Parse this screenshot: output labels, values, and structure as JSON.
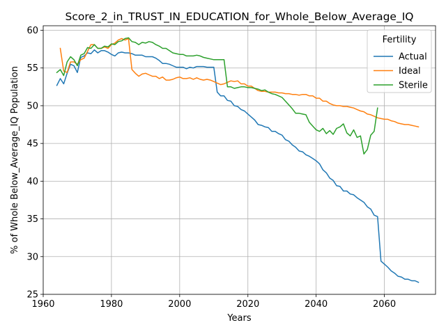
{
  "chart_data": {
    "type": "line",
    "title": "Score_2_in_TRUST_IN_EDUCATION_for_Whole_Below_Average_IQ",
    "xlabel": "Years",
    "ylabel": "% of Whole Below_Average_IQ Population",
    "xlim": [
      1960,
      2075
    ],
    "ylim": [
      25,
      60.6
    ],
    "xticks": [
      1960,
      1980,
      2000,
      2020,
      2040,
      2060
    ],
    "yticks": [
      25,
      30,
      35,
      40,
      45,
      50,
      55,
      60
    ],
    "xtick_labels": [
      "1960",
      "1980",
      "2000",
      "2020",
      "2040",
      "2060"
    ],
    "ytick_labels": [
      "25",
      "30",
      "35",
      "40",
      "45",
      "50",
      "55",
      "60"
    ],
    "grid": true,
    "legend": {
      "title": "Fertility",
      "placement": "top-right"
    },
    "series": [
      {
        "name": "Actual",
        "color": "#1f77b4",
        "x": [
          1964,
          1965,
          1966,
          1967,
          1968,
          1969,
          1970,
          1971,
          1972,
          1973,
          1974,
          1975,
          1976,
          1977,
          1978,
          1979,
          1980,
          1981,
          1982,
          1983,
          1984,
          1985,
          1986,
          1987,
          1988,
          1989,
          1990,
          1991,
          1992,
          1993,
          1994,
          1995,
          1996,
          1997,
          1998,
          1999,
          2000,
          2001,
          2002,
          2003,
          2004,
          2005,
          2006,
          2007,
          2008,
          2009,
          2010,
          2011,
          2012,
          2013,
          2014,
          2015,
          2016,
          2017,
          2018,
          2019,
          2020,
          2021,
          2022,
          2023,
          2024,
          2025,
          2026,
          2027,
          2028,
          2029,
          2030,
          2031,
          2032,
          2033,
          2034,
          2035,
          2036,
          2037,
          2038,
          2039,
          2040,
          2041,
          2042,
          2043,
          2044,
          2045,
          2046,
          2047,
          2048,
          2049,
          2050,
          2051,
          2052,
          2053,
          2054,
          2055,
          2056,
          2057,
          2058,
          2059,
          2060,
          2061,
          2062,
          2063,
          2064,
          2065,
          2066,
          2067,
          2068,
          2069,
          2070
        ],
        "y": [
          52.7,
          53.6,
          52.9,
          54.3,
          55.5,
          55.3,
          54.4,
          56.4,
          56.6,
          57.0,
          56.9,
          57.4,
          57.0,
          57.3,
          57.3,
          57.1,
          56.8,
          56.6,
          57.0,
          57.1,
          57.0,
          57.0,
          56.9,
          56.7,
          56.7,
          56.7,
          56.5,
          56.5,
          56.5,
          56.3,
          56.0,
          55.6,
          55.6,
          55.5,
          55.3,
          55.1,
          55.1,
          55.1,
          54.9,
          55.1,
          55.0,
          55.2,
          55.2,
          55.2,
          55.1,
          55.1,
          55.1,
          51.8,
          51.3,
          51.3,
          50.7,
          50.6,
          50.0,
          49.9,
          49.5,
          49.3,
          48.9,
          48.5,
          48.1,
          47.5,
          47.4,
          47.2,
          47.1,
          46.6,
          46.6,
          46.3,
          46.1,
          45.5,
          45.3,
          44.8,
          44.5,
          44.0,
          43.9,
          43.5,
          43.3,
          43.0,
          42.7,
          42.3,
          41.5,
          41.1,
          40.4,
          40.1,
          39.4,
          39.3,
          38.7,
          38.7,
          38.3,
          38.2,
          37.8,
          37.5,
          37.2,
          36.6,
          36.3,
          35.5,
          35.3,
          29.4,
          29.0,
          28.6,
          28.1,
          27.8,
          27.4,
          27.3,
          27.0,
          27.0,
          26.8,
          26.8,
          26.6
        ]
      },
      {
        "name": "Ideal",
        "color": "#ff7f0e",
        "x": [
          1965,
          1966,
          1967,
          1968,
          1969,
          1970,
          1971,
          1972,
          1973,
          1974,
          1975,
          1976,
          1977,
          1978,
          1979,
          1980,
          1981,
          1982,
          1983,
          1984,
          1985,
          1986,
          1987,
          1988,
          1989,
          1990,
          1991,
          1992,
          1993,
          1994,
          1995,
          1996,
          1997,
          1998,
          1999,
          2000,
          2001,
          2002,
          2003,
          2004,
          2005,
          2006,
          2007,
          2008,
          2009,
          2010,
          2011,
          2012,
          2013,
          2014,
          2015,
          2016,
          2017,
          2018,
          2019,
          2020,
          2021,
          2022,
          2023,
          2024,
          2025,
          2026,
          2027,
          2028,
          2029,
          2030,
          2031,
          2032,
          2033,
          2034,
          2035,
          2036,
          2037,
          2038,
          2039,
          2040,
          2041,
          2042,
          2043,
          2044,
          2045,
          2046,
          2047,
          2048,
          2049,
          2050,
          2051,
          2052,
          2053,
          2054,
          2055,
          2056,
          2057,
          2058,
          2059,
          2060,
          2061,
          2062,
          2063,
          2064,
          2065,
          2066,
          2067,
          2068,
          2069,
          2070
        ],
        "y": [
          57.6,
          54.6,
          54.4,
          55.8,
          55.8,
          55.5,
          56.1,
          56.3,
          57.2,
          58.1,
          58.1,
          57.6,
          57.6,
          57.8,
          57.6,
          58.1,
          58.3,
          58.7,
          58.9,
          58.7,
          58.9,
          54.8,
          54.3,
          53.9,
          54.2,
          54.3,
          54.1,
          53.9,
          53.9,
          53.6,
          53.8,
          53.4,
          53.4,
          53.5,
          53.7,
          53.8,
          53.6,
          53.6,
          53.7,
          53.5,
          53.7,
          53.5,
          53.4,
          53.5,
          53.4,
          53.2,
          53.0,
          52.8,
          52.9,
          53.1,
          53.3,
          53.2,
          53.3,
          52.9,
          52.9,
          52.6,
          52.6,
          52.3,
          52.0,
          51.9,
          51.9,
          51.8,
          51.8,
          51.8,
          51.7,
          51.7,
          51.6,
          51.6,
          51.5,
          51.5,
          51.4,
          51.5,
          51.5,
          51.3,
          51.3,
          51.0,
          51.0,
          50.6,
          50.6,
          50.3,
          50.1,
          50.0,
          50.0,
          49.9,
          49.9,
          49.8,
          49.7,
          49.5,
          49.3,
          49.2,
          48.9,
          48.8,
          48.6,
          48.4,
          48.3,
          48.2,
          48.2,
          48.0,
          47.9,
          47.7,
          47.6,
          47.5,
          47.5,
          47.4,
          47.3,
          47.2
        ]
      },
      {
        "name": "Sterile",
        "color": "#2ca02c",
        "x": [
          1964,
          1965,
          1966,
          1967,
          1968,
          1969,
          1970,
          1971,
          1972,
          1973,
          1974,
          1975,
          1976,
          1977,
          1978,
          1979,
          1980,
          1981,
          1982,
          1983,
          1984,
          1985,
          1986,
          1987,
          1988,
          1989,
          1990,
          1991,
          1992,
          1993,
          1994,
          1995,
          1996,
          1997,
          1998,
          1999,
          2000,
          2001,
          2002,
          2003,
          2004,
          2005,
          2006,
          2007,
          2008,
          2009,
          2010,
          2011,
          2012,
          2013,
          2014,
          2015,
          2016,
          2017,
          2018,
          2019,
          2020,
          2021,
          2022,
          2023,
          2024,
          2025,
          2026,
          2027,
          2028,
          2029,
          2030,
          2031,
          2032,
          2033,
          2034,
          2035,
          2036,
          2037,
          2038,
          2039,
          2040,
          2041,
          2042,
          2043,
          2044,
          2045,
          2046,
          2047,
          2048,
          2049,
          2050,
          2051,
          2052,
          2053,
          2054,
          2055,
          2056,
          2057,
          2058
        ],
        "y": [
          54.4,
          54.8,
          54.0,
          55.8,
          56.5,
          56.1,
          55.3,
          56.7,
          56.9,
          57.7,
          57.6,
          58.1,
          57.6,
          57.6,
          57.9,
          57.8,
          58.2,
          58.1,
          58.5,
          58.6,
          58.9,
          59.0,
          58.5,
          58.4,
          58.1,
          58.4,
          58.3,
          58.5,
          58.4,
          58.1,
          57.9,
          57.6,
          57.6,
          57.3,
          57.0,
          56.9,
          56.8,
          56.8,
          56.6,
          56.6,
          56.6,
          56.7,
          56.6,
          56.4,
          56.3,
          56.2,
          56.1,
          56.1,
          56.1,
          56.1,
          52.5,
          52.5,
          52.3,
          52.4,
          52.5,
          52.5,
          52.4,
          52.4,
          52.3,
          52.2,
          52.0,
          52.1,
          51.8,
          51.6,
          51.5,
          51.3,
          51.1,
          50.6,
          50.1,
          49.6,
          49.0,
          49.0,
          48.9,
          48.8,
          47.8,
          47.3,
          46.8,
          46.6,
          47.0,
          46.3,
          46.7,
          46.2,
          47.0,
          47.2,
          47.6,
          46.4,
          46.0,
          46.8,
          45.8,
          46.0,
          43.6,
          44.2,
          46.1,
          46.6,
          49.7
        ]
      }
    ]
  }
}
